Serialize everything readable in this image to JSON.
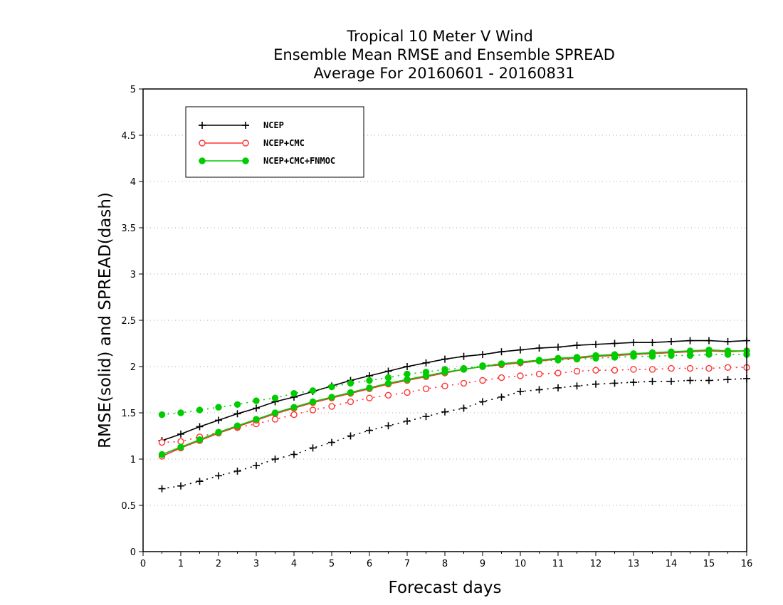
{
  "chart_data": {
    "type": "line",
    "title": [
      "Tropical 10 Meter V Wind",
      "Ensemble Mean RMSE and Ensemble SPREAD",
      "Average For 20160601 - 20160831"
    ],
    "xlabel": "Forecast days",
    "ylabel": "RMSE(solid) and SPREAD(dash)",
    "xlim": [
      0,
      16
    ],
    "ylim": [
      0,
      5
    ],
    "xticks": [
      0,
      1,
      2,
      3,
      4,
      5,
      6,
      7,
      8,
      9,
      10,
      11,
      12,
      13,
      14,
      15,
      16
    ],
    "yticks": [
      0,
      0.5,
      1,
      1.5,
      2,
      2.5,
      3,
      3.5,
      4,
      4.5,
      5
    ],
    "ytick_labels": [
      "0",
      "0.5",
      "1",
      "1.5",
      "2",
      "2.5",
      "3",
      "3.5",
      "4",
      "4.5",
      "5"
    ],
    "grid": "horizontal dotted",
    "legend_position": "top-left",
    "x": [
      0.5,
      1.0,
      1.5,
      2.0,
      2.5,
      3.0,
      3.5,
      4.0,
      4.5,
      5.0,
      5.5,
      6.0,
      6.5,
      7.0,
      7.5,
      8.0,
      8.5,
      9.0,
      9.5,
      10.0,
      10.5,
      11.0,
      11.5,
      12.0,
      12.5,
      13.0,
      13.5,
      14.0,
      14.5,
      15.0,
      15.5,
      16.0
    ],
    "series": [
      {
        "name": "NCEP",
        "color": "#000000",
        "marker": "plus",
        "rmse": [
          1.2,
          1.27,
          1.35,
          1.42,
          1.49,
          1.55,
          1.62,
          1.67,
          1.73,
          1.79,
          1.85,
          1.9,
          1.95,
          2.0,
          2.04,
          2.08,
          2.11,
          2.13,
          2.16,
          2.18,
          2.2,
          2.21,
          2.23,
          2.24,
          2.25,
          2.26,
          2.26,
          2.27,
          2.28,
          2.28,
          2.27,
          2.28
        ],
        "spread": [
          0.68,
          0.71,
          0.76,
          0.82,
          0.87,
          0.93,
          1.0,
          1.05,
          1.12,
          1.18,
          1.25,
          1.31,
          1.36,
          1.41,
          1.46,
          1.51,
          1.55,
          1.62,
          1.67,
          1.73,
          1.75,
          1.77,
          1.79,
          1.81,
          1.82,
          1.83,
          1.84,
          1.84,
          1.85,
          1.85,
          1.86,
          1.87
        ]
      },
      {
        "name": "NCEP+CMC",
        "color": "#ff3333",
        "marker": "open-circle",
        "rmse": [
          1.03,
          1.12,
          1.2,
          1.28,
          1.35,
          1.42,
          1.49,
          1.55,
          1.61,
          1.66,
          1.71,
          1.76,
          1.81,
          1.85,
          1.89,
          1.93,
          1.97,
          2.0,
          2.02,
          2.04,
          2.06,
          2.08,
          2.09,
          2.11,
          2.12,
          2.13,
          2.14,
          2.15,
          2.16,
          2.17,
          2.16,
          2.17
        ],
        "spread": [
          1.18,
          1.19,
          1.24,
          1.29,
          1.34,
          1.38,
          1.43,
          1.48,
          1.53,
          1.57,
          1.62,
          1.66,
          1.69,
          1.72,
          1.76,
          1.79,
          1.82,
          1.85,
          1.88,
          1.9,
          1.92,
          1.93,
          1.95,
          1.96,
          1.96,
          1.97,
          1.97,
          1.98,
          1.98,
          1.98,
          1.99,
          1.99
        ]
      },
      {
        "name": "NCEP+CMC+FNMOC",
        "color": "#00cc00",
        "marker": "filled-circle",
        "rmse": [
          1.05,
          1.13,
          1.21,
          1.29,
          1.36,
          1.43,
          1.5,
          1.56,
          1.62,
          1.67,
          1.72,
          1.77,
          1.82,
          1.86,
          1.9,
          1.94,
          1.97,
          2.0,
          2.03,
          2.05,
          2.07,
          2.09,
          2.1,
          2.12,
          2.13,
          2.14,
          2.15,
          2.16,
          2.17,
          2.18,
          2.17,
          2.17
        ],
        "spread": [
          1.48,
          1.5,
          1.53,
          1.56,
          1.59,
          1.63,
          1.66,
          1.71,
          1.74,
          1.78,
          1.82,
          1.85,
          1.88,
          1.92,
          1.94,
          1.97,
          1.98,
          2.01,
          2.03,
          2.05,
          2.06,
          2.07,
          2.08,
          2.09,
          2.1,
          2.11,
          2.11,
          2.12,
          2.12,
          2.13,
          2.13,
          2.13
        ]
      }
    ]
  }
}
